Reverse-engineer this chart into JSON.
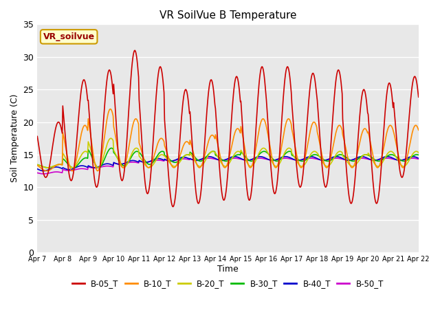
{
  "title": "VR SoilVue B Temperature",
  "ylabel": "Soil Temperature (C)",
  "xlabel": "Time",
  "annotation": "VR_soilvue",
  "ylim": [
    0,
    35
  ],
  "yticks": [
    0,
    5,
    10,
    15,
    20,
    25,
    30,
    35
  ],
  "x_labels": [
    "Apr 7",
    "Apr 8",
    "Apr 9",
    "Apr 10",
    "Apr 11",
    "Apr 12",
    "Apr 13",
    "Apr 14",
    "Apr 15",
    "Apr 16",
    "Apr 17",
    "Apr 18",
    "Apr 19",
    "Apr 20",
    "Apr 21",
    "Apr 22"
  ],
  "series_colors": {
    "B-05_T": "#cc0000",
    "B-10_T": "#ff8c00",
    "B-20_T": "#cccc00",
    "B-30_T": "#00bb00",
    "B-40_T": "#0000cc",
    "B-50_T": "#cc00cc"
  },
  "plot_bg": "#e8e8e8",
  "fig_bg": "#ffffff",
  "grid_color": "#ffffff",
  "num_days": 15,
  "pts_per_day": 48,
  "B05_peaks": [
    20.0,
    26.5,
    28.0,
    31.0,
    28.5,
    25.0,
    26.5,
    27.0,
    28.5,
    28.5,
    27.5,
    28.0,
    25.0,
    26.0,
    27.0
  ],
  "B05_troughs": [
    11.5,
    11.0,
    10.0,
    11.0,
    9.0,
    7.0,
    7.5,
    8.0,
    8.0,
    9.0,
    10.0,
    10.0,
    7.5,
    7.5,
    11.5
  ],
  "B10_peaks": [
    13.5,
    19.5,
    22.0,
    20.5,
    17.5,
    17.0,
    18.0,
    19.0,
    20.5,
    20.5,
    20.0,
    19.5,
    19.0,
    19.5,
    19.5
  ],
  "B10_troughs": [
    12.5,
    12.5,
    12.5,
    13.0,
    13.0,
    13.0,
    13.0,
    13.0,
    13.0,
    13.0,
    13.0,
    13.0,
    13.0,
    13.0,
    13.0
  ],
  "B20_peaks": [
    13.5,
    15.5,
    17.5,
    16.0,
    15.0,
    15.0,
    15.5,
    15.5,
    16.0,
    16.0,
    15.5,
    15.5,
    15.0,
    15.5,
    15.5
  ],
  "B20_troughs": [
    13.0,
    13.0,
    13.0,
    13.0,
    13.0,
    13.2,
    13.2,
    13.2,
    13.2,
    13.2,
    13.2,
    13.2,
    13.2,
    13.2,
    13.2
  ],
  "B30_peaks": [
    13.5,
    14.5,
    16.0,
    15.5,
    15.5,
    15.0,
    15.5,
    15.0,
    15.5,
    15.5,
    15.0,
    15.0,
    15.0,
    15.0,
    15.0
  ],
  "B30_troughs": [
    13.0,
    13.0,
    13.0,
    13.3,
    13.5,
    13.8,
    14.0,
    14.0,
    14.0,
    14.0,
    14.0,
    14.0,
    14.0,
    14.0,
    14.0
  ],
  "B40_base": [
    12.8,
    13.0,
    13.3,
    13.8,
    14.1,
    14.3,
    14.4,
    14.4,
    14.4,
    14.4,
    14.4,
    14.4,
    14.4,
    14.4,
    14.4
  ],
  "B50_base": [
    12.2,
    12.7,
    13.1,
    13.7,
    14.0,
    14.2,
    14.3,
    14.3,
    14.3,
    14.3,
    14.3,
    14.3,
    14.3,
    14.3,
    14.3
  ],
  "peak_hour": 0.58,
  "trough_hour": 0.25,
  "legend_entries": [
    "B-05_T",
    "B-10_T",
    "B-20_T",
    "B-30_T",
    "B-40_T",
    "B-50_T"
  ]
}
